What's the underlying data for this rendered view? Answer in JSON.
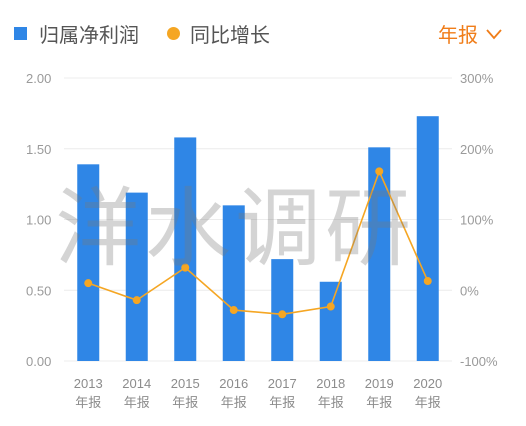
{
  "legend": {
    "bar_label": "归属净利润",
    "line_label": "同比增长"
  },
  "period_selector": {
    "label": "年报",
    "icon": "chevron-down-icon"
  },
  "watermark": "洋水调研",
  "colors": {
    "bar": "#2f86e6",
    "line": "#f5a623",
    "accent": "#f07d19",
    "grid": "#ececec"
  },
  "chart_data": {
    "type": "bar",
    "categories": [
      "2013",
      "2014",
      "2015",
      "2016",
      "2017",
      "2018",
      "2019",
      "2020"
    ],
    "category_suffix": "年报",
    "series": [
      {
        "name": "归属净利润",
        "type": "bar",
        "axis": "left",
        "values": [
          1.39,
          1.19,
          1.58,
          1.1,
          0.72,
          0.56,
          1.51,
          1.73
        ]
      },
      {
        "name": "同比增长",
        "type": "line",
        "axis": "right",
        "values": [
          10,
          -14,
          32,
          -28,
          -34,
          -23,
          168,
          13
        ]
      }
    ],
    "y_left": {
      "ticks": [
        "0.00",
        "0.50",
        "1.00",
        "1.50",
        "2.00"
      ],
      "ylim": [
        0,
        2
      ]
    },
    "y_right": {
      "ticks": [
        "-100%",
        "0%",
        "100%",
        "200%",
        "300%"
      ],
      "ylim": [
        -100,
        300
      ]
    },
    "grid": true,
    "legend_position": "top-left"
  }
}
